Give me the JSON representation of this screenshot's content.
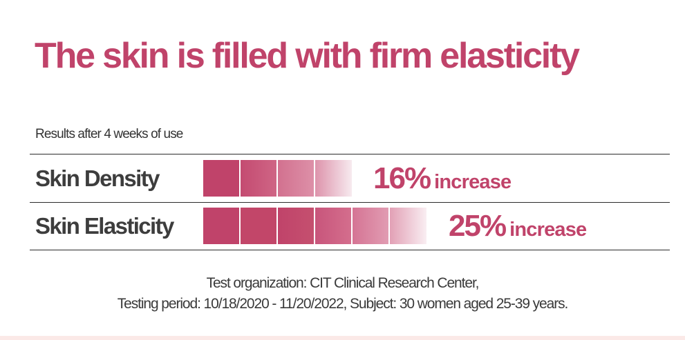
{
  "headline": "The skin is filled with firm elasticity",
  "caption": "Results after 4 weeks of use",
  "metrics": [
    {
      "label": "Skin Density",
      "percent_text": "16%",
      "suffix": "increase",
      "value_percent": 16,
      "segments": 4
    },
    {
      "label": "Skin Elasticity",
      "percent_text": "25%",
      "suffix": "increase",
      "value_percent": 25,
      "segments": 6
    }
  ],
  "footnote": {
    "line1": "Test organization: CIT Clinical Research Center,",
    "line2": "Testing period: 10/18/2020 - 11/20/2022, Subject: 30 women aged 25-39 years."
  },
  "colors": {
    "accent": "#c0436a",
    "bar_dark": "#c0436a",
    "bar_light": "#f6e4ea",
    "label_text": "#3d3d3d",
    "rule": "#2a2a2a",
    "bottom_band": "#fbe9e7"
  }
}
